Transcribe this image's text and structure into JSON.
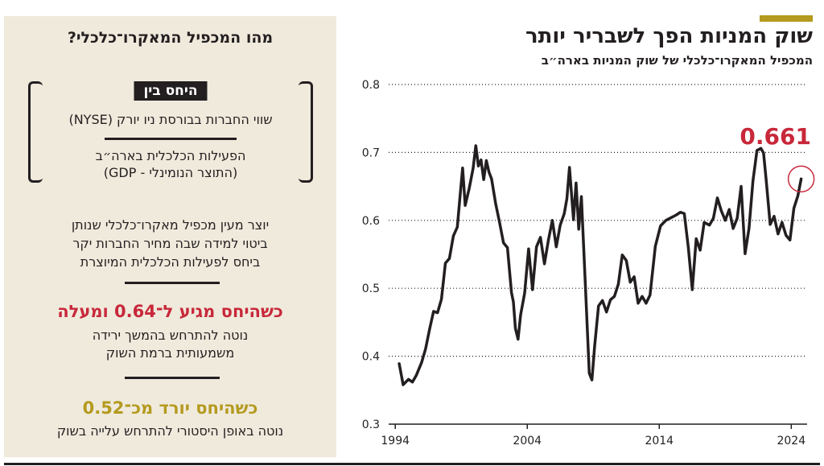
{
  "panel": {
    "question": "מהו המכפיל המאקרו־כלכלי?",
    "ratio_label": "היחס בין",
    "numerator": "שווי החברות בבורסת ניו יורק (NYSE)",
    "denominator_line1": "הפעילות הכלכלית בארה״ב",
    "denominator_line2": "(התוצר הנומינלי - GDP)",
    "explanation_line1": "יוצר מעין מכפיל מאקרו־כלכלי שנותן",
    "explanation_line2": "ביטוי למידה שבה מחיר החברות יקר",
    "explanation_line3": "ביחס לפעילות הכלכלית המיוצרת",
    "high_headline": "כשהיחס מגיע ל־0.64 ומעלה",
    "high_text_line1": "נוטה להתרחש בהמשך ירידה",
    "high_text_line2": "משמעותית ברמת השוק",
    "low_headline": "כשהיחס יורד מכ־0.52",
    "low_text": "נוטה באופן היסטורי להתרחש עלייה בשוק"
  },
  "colors": {
    "panel_bg": "#efeadc",
    "accent_red": "#c8283a",
    "accent_gold": "#b49a1e",
    "ink": "#231f20"
  },
  "chart_data": {
    "type": "line",
    "title": "שוק המניות הפך לשבריר יותר",
    "subtitle": "המכפיל המאקרו־כלכלי של שוק המניות בארה״ב",
    "xlim": [
      1993.5,
      2025.2
    ],
    "ylim": [
      0.3,
      0.8
    ],
    "x_ticks": [
      1994,
      2004,
      2014,
      2024
    ],
    "y_ticks": [
      0.3,
      0.4,
      0.5,
      0.6,
      0.7,
      0.8
    ],
    "grid": "horizontal-dotted",
    "latest_label": "0.661",
    "latest_point": [
      2024.75,
      0.661
    ],
    "series": [
      {
        "x": [
          1994.3,
          1994.6,
          1995.0,
          1995.3,
          1995.6,
          1996.0,
          1996.3,
          1996.6,
          1996.9,
          1997.2,
          1997.5,
          1997.8,
          1998.1,
          1998.4,
          1998.7,
          1998.9,
          1999.1,
          1999.3,
          1999.6,
          1999.9,
          2000.1,
          2000.3,
          2000.5,
          2000.7,
          2000.9,
          2001.1,
          2001.3,
          2001.6,
          2001.9,
          2002.2,
          2002.5,
          2002.8,
          2002.95,
          2003.1,
          2003.3,
          2003.5,
          2003.8,
          2004.1,
          2004.4,
          2004.7,
          2005.0,
          2005.3,
          2005.6,
          2005.9,
          2006.2,
          2006.5,
          2006.8,
          2007.0,
          2007.2,
          2007.5,
          2007.7,
          2007.9,
          2008.1,
          2008.4,
          2008.7,
          2008.9,
          2009.1,
          2009.4,
          2009.7,
          2010.0,
          2010.3,
          2010.6,
          2010.9,
          2011.2,
          2011.5,
          2011.8,
          2012.1,
          2012.4,
          2012.7,
          2013.0,
          2013.3,
          2013.7,
          2014.1,
          2014.5,
          2014.9,
          2015.3,
          2015.6,
          2015.9,
          2016.2,
          2016.5,
          2016.8,
          2017.1,
          2017.4,
          2017.8,
          2018.1,
          2018.4,
          2018.7,
          2019.0,
          2019.3,
          2019.6,
          2019.9,
          2020.2,
          2020.5,
          2020.8,
          2021.1,
          2021.4,
          2021.7,
          2021.9,
          2022.1,
          2022.4,
          2022.7,
          2023.0,
          2023.3,
          2023.6,
          2023.9,
          2024.2,
          2024.5,
          2024.75
        ],
        "y": [
          0.389,
          0.358,
          0.366,
          0.362,
          0.372,
          0.391,
          0.411,
          0.44,
          0.466,
          0.464,
          0.484,
          0.537,
          0.544,
          0.577,
          0.59,
          0.634,
          0.677,
          0.622,
          0.647,
          0.677,
          0.71,
          0.68,
          0.689,
          0.66,
          0.688,
          0.671,
          0.661,
          0.625,
          0.597,
          0.567,
          0.56,
          0.494,
          0.48,
          0.441,
          0.425,
          0.461,
          0.493,
          0.558,
          0.498,
          0.561,
          0.575,
          0.536,
          0.571,
          0.6,
          0.561,
          0.593,
          0.61,
          0.632,
          0.678,
          0.601,
          0.655,
          0.587,
          0.635,
          0.506,
          0.375,
          0.365,
          0.414,
          0.474,
          0.482,
          0.465,
          0.483,
          0.488,
          0.506,
          0.549,
          0.541,
          0.509,
          0.517,
          0.478,
          0.488,
          0.478,
          0.49,
          0.562,
          0.592,
          0.6,
          0.604,
          0.608,
          0.612,
          0.61,
          0.56,
          0.498,
          0.573,
          0.556,
          0.597,
          0.593,
          0.603,
          0.633,
          0.614,
          0.6,
          0.616,
          0.588,
          0.603,
          0.65,
          0.551,
          0.588,
          0.658,
          0.703,
          0.706,
          0.699,
          0.66,
          0.594,
          0.606,
          0.58,
          0.597,
          0.578,
          0.571,
          0.618,
          0.636,
          0.661
        ]
      }
    ]
  }
}
